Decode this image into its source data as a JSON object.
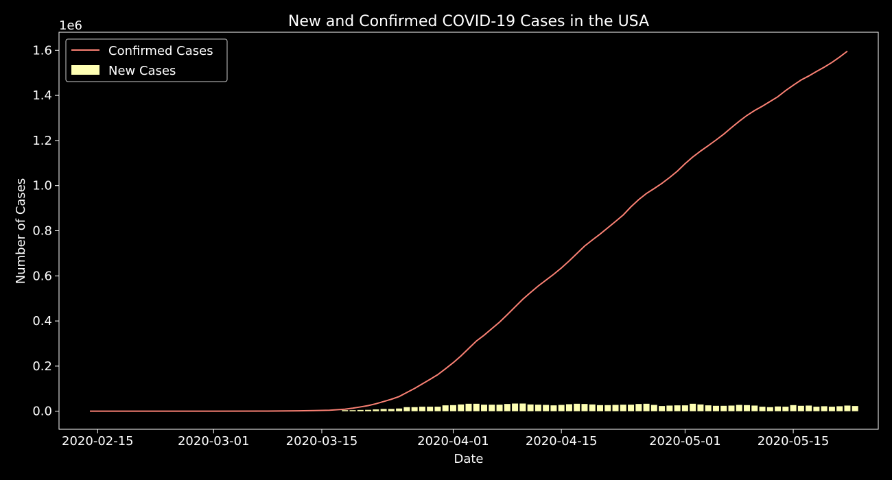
{
  "chart_data": {
    "type": "line",
    "title": "New and Confirmed COVID-19 Cases in the USA",
    "xlabel": "Date",
    "ylabel": "Number of Cases",
    "y_offset_text": "1e6",
    "x_range": [
      "2020-02-10",
      "2020-05-26"
    ],
    "ylim": [
      -0.08,
      1.68
    ],
    "y_ticks": [
      0.0,
      0.2,
      0.4,
      0.6,
      0.8,
      1.0,
      1.2,
      1.4,
      1.6
    ],
    "y_tick_labels": [
      "0.0",
      "0.2",
      "0.4",
      "0.6",
      "0.8",
      "1.0",
      "1.2",
      "1.4",
      "1.6"
    ],
    "x_ticks": [
      "2020-02-15",
      "2020-03-01",
      "2020-03-15",
      "2020-04-01",
      "2020-04-15",
      "2020-05-01",
      "2020-05-15"
    ],
    "y_scale_note": "values in units of 1e6",
    "legend": {
      "placement": "upper-left",
      "entries": [
        "Confirmed Cases",
        "New Cases"
      ]
    },
    "grid": false,
    "colors": {
      "background": "#000000",
      "confirmed": "#fa8174",
      "new": "#feffb3",
      "axes": "#ffffff"
    },
    "series": [
      {
        "name": "Confirmed Cases",
        "type": "line",
        "points": [
          [
            "2020-02-14",
            0.0
          ],
          [
            "2020-03-01",
            0.0001
          ],
          [
            "2020-03-08",
            0.0005
          ],
          [
            "2020-03-12",
            0.0016
          ],
          [
            "2020-03-14",
            0.0027
          ],
          [
            "2020-03-16",
            0.0045
          ],
          [
            "2020-03-18",
            0.009
          ],
          [
            "2020-03-19",
            0.0135
          ],
          [
            "2020-03-20",
            0.019
          ],
          [
            "2020-03-21",
            0.025
          ],
          [
            "2020-03-22",
            0.033
          ],
          [
            "2020-03-23",
            0.043
          ],
          [
            "2020-03-24",
            0.053
          ],
          [
            "2020-03-25",
            0.065
          ],
          [
            "2020-03-26",
            0.083
          ],
          [
            "2020-03-27",
            0.101
          ],
          [
            "2020-03-28",
            0.121
          ],
          [
            "2020-03-29",
            0.141
          ],
          [
            "2020-03-30",
            0.162
          ],
          [
            "2020-03-31",
            0.188
          ],
          [
            "2020-04-01",
            0.215
          ],
          [
            "2020-04-02",
            0.245
          ],
          [
            "2020-04-03",
            0.278
          ],
          [
            "2020-04-04",
            0.311
          ],
          [
            "2020-04-05",
            0.337
          ],
          [
            "2020-04-06",
            0.366
          ],
          [
            "2020-04-07",
            0.395
          ],
          [
            "2020-04-08",
            0.428
          ],
          [
            "2020-04-09",
            0.462
          ],
          [
            "2020-04-10",
            0.496
          ],
          [
            "2020-04-11",
            0.526
          ],
          [
            "2020-04-12",
            0.555
          ],
          [
            "2020-04-13",
            0.581
          ],
          [
            "2020-04-14",
            0.607
          ],
          [
            "2020-04-15",
            0.635
          ],
          [
            "2020-04-16",
            0.666
          ],
          [
            "2020-04-17",
            0.699
          ],
          [
            "2020-04-18",
            0.732
          ],
          [
            "2020-04-19",
            0.759
          ],
          [
            "2020-04-20",
            0.785
          ],
          [
            "2020-04-21",
            0.813
          ],
          [
            "2020-04-22",
            0.841
          ],
          [
            "2020-04-23",
            0.87
          ],
          [
            "2020-04-24",
            0.906
          ],
          [
            "2020-04-25",
            0.938
          ],
          [
            "2020-04-26",
            0.965
          ],
          [
            "2020-04-27",
            0.987
          ],
          [
            "2020-04-28",
            1.01
          ],
          [
            "2020-04-29",
            1.036
          ],
          [
            "2020-04-30",
            1.064
          ],
          [
            "2020-05-01",
            1.097
          ],
          [
            "2020-05-02",
            1.127
          ],
          [
            "2020-05-03",
            1.153
          ],
          [
            "2020-05-04",
            1.177
          ],
          [
            "2020-05-05",
            1.202
          ],
          [
            "2020-05-06",
            1.228
          ],
          [
            "2020-05-07",
            1.257
          ],
          [
            "2020-05-08",
            1.285
          ],
          [
            "2020-05-09",
            1.311
          ],
          [
            "2020-05-10",
            1.333
          ],
          [
            "2020-05-11",
            1.352
          ],
          [
            "2020-05-12",
            1.373
          ],
          [
            "2020-05-13",
            1.394
          ],
          [
            "2020-05-14",
            1.421
          ],
          [
            "2020-05-15",
            1.445
          ],
          [
            "2020-05-16",
            1.468
          ],
          [
            "2020-05-17",
            1.486
          ],
          [
            "2020-05-18",
            1.506
          ],
          [
            "2020-05-19",
            1.525
          ],
          [
            "2020-05-20",
            1.546
          ],
          [
            "2020-05-21",
            1.57
          ],
          [
            "2020-05-22",
            1.596
          ]
        ]
      },
      {
        "name": "New Cases",
        "type": "bar",
        "start_date": "2020-03-18",
        "values": [
          0.0045,
          0.0045,
          0.0055,
          0.006,
          0.008,
          0.01,
          0.01,
          0.012,
          0.018,
          0.018,
          0.02,
          0.02,
          0.02,
          0.026,
          0.027,
          0.03,
          0.033,
          0.033,
          0.029,
          0.029,
          0.029,
          0.032,
          0.034,
          0.034,
          0.03,
          0.029,
          0.028,
          0.026,
          0.028,
          0.031,
          0.033,
          0.032,
          0.03,
          0.027,
          0.027,
          0.028,
          0.029,
          0.029,
          0.032,
          0.033,
          0.028,
          0.023,
          0.025,
          0.026,
          0.026,
          0.033,
          0.03,
          0.026,
          0.024,
          0.024,
          0.025,
          0.028,
          0.027,
          0.025,
          0.02,
          0.018,
          0.021,
          0.02,
          0.027,
          0.024,
          0.025,
          0.02,
          0.022,
          0.02,
          0.022,
          0.025,
          0.023
        ]
      }
    ]
  }
}
